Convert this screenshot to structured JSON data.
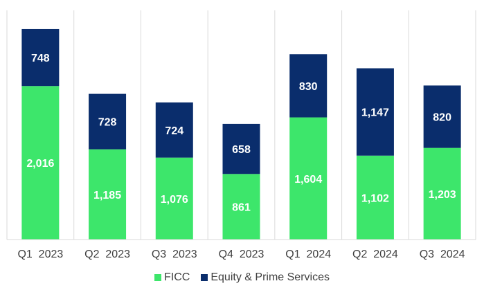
{
  "chart_data": {
    "type": "bar",
    "stacked": true,
    "categories": [
      "Q1  2023",
      "Q2  2023",
      "Q3  2023",
      "Q4  2023",
      "Q1  2024",
      "Q2  2024",
      "Q3  2024"
    ],
    "series": [
      {
        "name": "FICC",
        "color": "#3de66b",
        "values": [
          2016,
          1185,
          1076,
          861,
          1604,
          1102,
          1203
        ],
        "labels": [
          "2,016",
          "1,185",
          "1,076",
          "861",
          "1,604",
          "1,102",
          "1,203"
        ]
      },
      {
        "name": "Equity & Prime Services",
        "color": "#0a2d6c",
        "values": [
          748,
          728,
          724,
          658,
          830,
          1147,
          820
        ],
        "labels": [
          "748",
          "728",
          "724",
          "658",
          "830",
          "1,147",
          "820"
        ]
      }
    ],
    "ylim": [
      0,
      2900
    ],
    "legend_position": "bottom",
    "grid": "vertical separators between categories"
  }
}
